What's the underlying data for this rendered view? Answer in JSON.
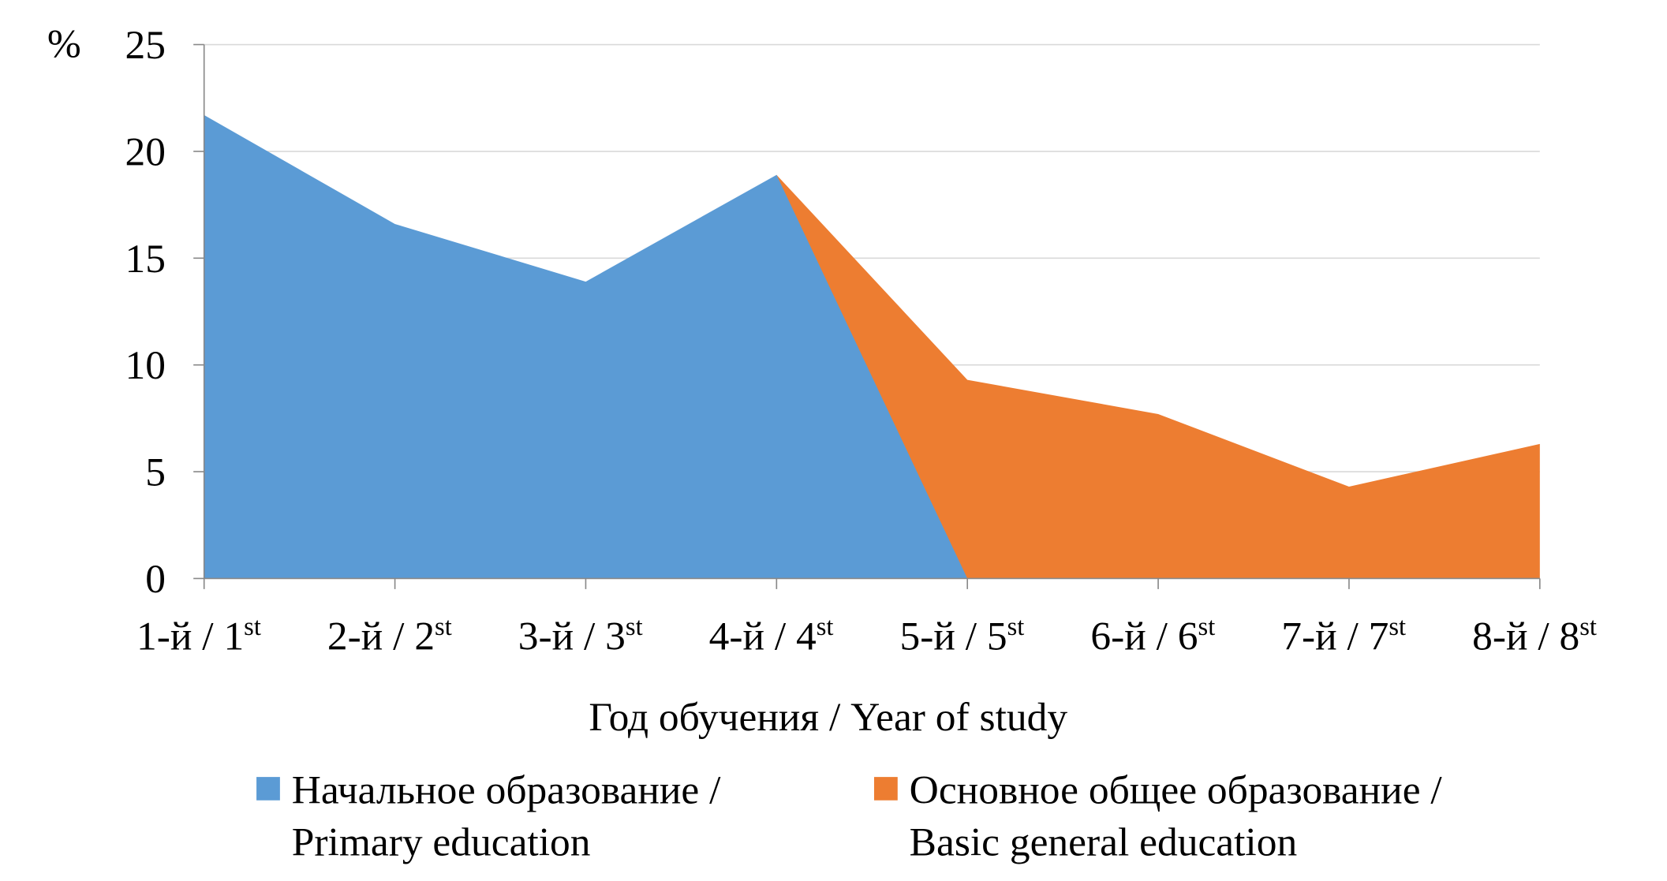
{
  "chart_data": {
    "type": "area",
    "title": "",
    "ylabel": "%",
    "xlabel": "Год обучения / Year of study",
    "ylim": [
      0,
      25
    ],
    "yticks": [
      "0",
      "5",
      "10",
      "15",
      "20",
      "25"
    ],
    "grid": true,
    "legend_position": "bottom",
    "categories": [
      {
        "main": "1-й / 1",
        "sup": "st"
      },
      {
        "main": "2-й / 2",
        "sup": "st"
      },
      {
        "main": "3-й / 3",
        "sup": "st"
      },
      {
        "main": "4-й / 4",
        "sup": "st"
      },
      {
        "main": "5-й / 5",
        "sup": "st"
      },
      {
        "main": "6-й / 6",
        "sup": "st"
      },
      {
        "main": "7-й / 7",
        "sup": "st"
      },
      {
        "main": "8-й / 8",
        "sup": "st"
      }
    ],
    "series": [
      {
        "name": "Начальное образование / Primary education",
        "legend_lines": [
          "Начальное образование /",
          "Primary education"
        ],
        "color": "#5B9BD5",
        "values": [
          21.7,
          16.6,
          13.9,
          18.9,
          0,
          0,
          0,
          0
        ]
      },
      {
        "name": "Основное общее образование / Basic general education",
        "legend_lines": [
          "Основное общее образование /",
          "Basic general education"
        ],
        "color": "#ED7D31",
        "values": [
          0,
          0,
          0,
          18.9,
          9.3,
          7.7,
          4.3,
          6.3
        ]
      }
    ]
  }
}
